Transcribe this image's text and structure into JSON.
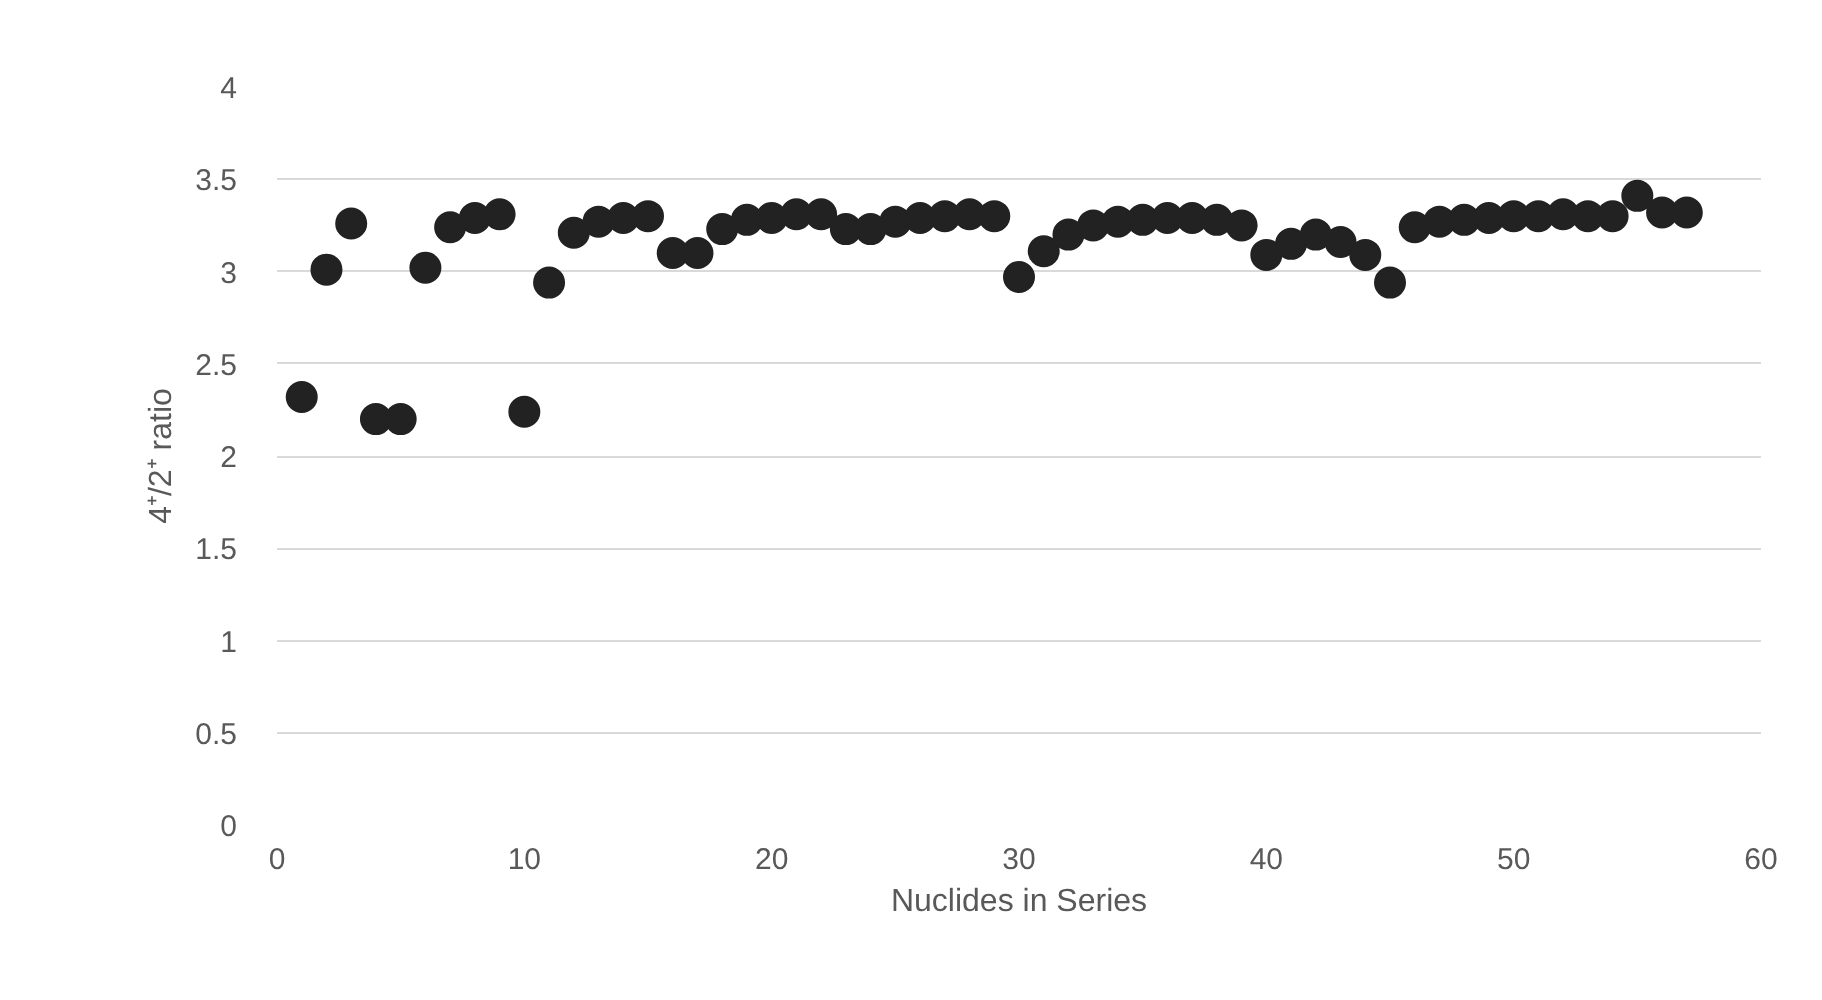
{
  "chart_data": {
    "type": "scatter",
    "xlabel": "Nuclides in Series",
    "ylabel": "4⁺/2⁺ ratio",
    "x": [
      1,
      2,
      3,
      4,
      5,
      6,
      7,
      8,
      9,
      10,
      11,
      12,
      13,
      14,
      15,
      16,
      17,
      18,
      19,
      20,
      21,
      22,
      23,
      24,
      25,
      26,
      27,
      28,
      29,
      30,
      31,
      32,
      33,
      34,
      35,
      36,
      37,
      38,
      39,
      40,
      41,
      42,
      43,
      44,
      45,
      46,
      47,
      48,
      49,
      50,
      51,
      52,
      53,
      54,
      55,
      56,
      57
    ],
    "series": [
      {
        "color": "#222222",
        "values": [
          2.32,
          3.01,
          3.26,
          2.2,
          2.2,
          3.02,
          3.24,
          3.29,
          3.31,
          2.24,
          2.94,
          3.21,
          3.27,
          3.29,
          3.3,
          3.1,
          3.1,
          3.23,
          3.28,
          3.29,
          3.31,
          3.31,
          3.23,
          3.23,
          3.27,
          3.29,
          3.3,
          3.31,
          3.3,
          2.97,
          3.11,
          3.2,
          3.25,
          3.27,
          3.28,
          3.29,
          3.29,
          3.28,
          3.25,
          3.09,
          3.15,
          3.2,
          3.16,
          3.09,
          2.94,
          3.24,
          3.27,
          3.28,
          3.29,
          3.3,
          3.3,
          3.31,
          3.3,
          3.3,
          3.41,
          3.32,
          3.32
        ]
      }
    ],
    "xlim": [
      0,
      60
    ],
    "xticks": [
      0,
      10,
      20,
      30,
      40,
      50,
      60
    ],
    "ylim": [
      0,
      4
    ],
    "yticks": [
      0,
      0.5,
      1,
      1.5,
      2,
      2.5,
      3,
      3.5,
      4
    ],
    "grid": "y",
    "marker": "circle"
  }
}
